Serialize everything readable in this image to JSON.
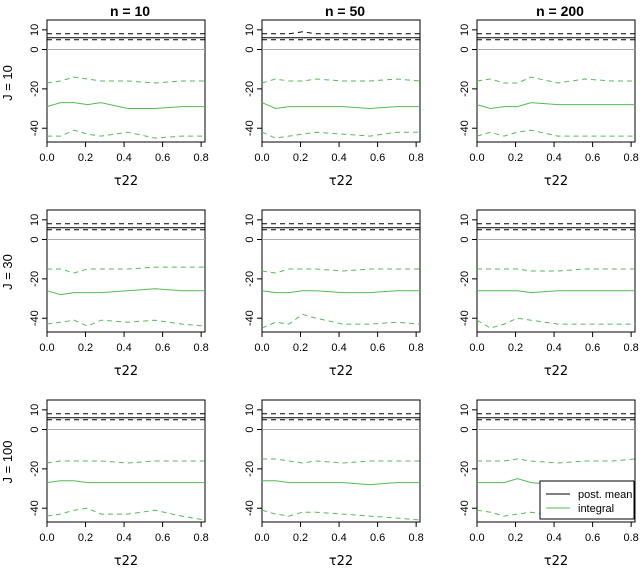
{
  "chart_data": {
    "type": "line",
    "layout": "3x3 grid",
    "column_titles": [
      "n = 10",
      "n = 50",
      "n = 200"
    ],
    "row_titles": [
      "J = 10",
      "J = 30",
      "J = 100"
    ],
    "xlabel": "τ22",
    "xlim": [
      0,
      0.82
    ],
    "ylim": [
      -47,
      15
    ],
    "x_ticks": [
      "0.0",
      "0.2",
      "0.4",
      "0.6",
      "0.8"
    ],
    "y_ticks": [
      "10",
      "0",
      "-20",
      "-40"
    ],
    "reference_line": 0,
    "legend": {
      "position": "bottom-right of bottom-right panel",
      "entries": [
        {
          "label": "post. mean",
          "color": "#000000"
        },
        {
          "label": "integral",
          "color": "#55bb55"
        }
      ]
    },
    "x": [
      0.0,
      0.07,
      0.14,
      0.21,
      0.28,
      0.42,
      0.56,
      0.7,
      0.82
    ],
    "panels": [
      {
        "row": "J = 10",
        "col": "n = 10",
        "post_mean": {
          "mid": [
            6,
            6,
            6,
            6,
            6,
            6,
            6,
            6,
            6
          ],
          "upper": [
            8,
            8,
            8,
            8,
            8,
            8,
            8,
            8,
            8
          ],
          "lower": [
            5,
            5,
            5,
            5,
            5,
            5,
            5,
            5,
            5
          ]
        },
        "integral": {
          "mid": [
            -29,
            -27,
            -27,
            -28,
            -27,
            -30,
            -30,
            -29,
            -29
          ],
          "upper": [
            -17,
            -16,
            -14,
            -15,
            -16,
            -16,
            -17,
            -16,
            -16
          ],
          "lower": [
            -44,
            -44,
            -41,
            -43,
            -44,
            -42,
            -45,
            -44,
            -44
          ]
        }
      },
      {
        "row": "J = 10",
        "col": "n = 50",
        "post_mean": {
          "mid": [
            6,
            6,
            6,
            6,
            6,
            6,
            6,
            6,
            6
          ],
          "upper": [
            8,
            8,
            8,
            9,
            8,
            8,
            8,
            8,
            8
          ],
          "lower": [
            5,
            5,
            5,
            5,
            5,
            5,
            5,
            5,
            5
          ]
        },
        "integral": {
          "mid": [
            -27,
            -30,
            -29,
            -29,
            -29,
            -29,
            -30,
            -29,
            -29
          ],
          "upper": [
            -17,
            -15,
            -16,
            -16,
            -15,
            -16,
            -16,
            -15,
            -16
          ],
          "lower": [
            -42,
            -45,
            -44,
            -43,
            -42,
            -43,
            -44,
            -42,
            -42
          ]
        }
      },
      {
        "row": "J = 10",
        "col": "n = 200",
        "post_mean": {
          "mid": [
            6,
            6,
            6,
            6,
            6,
            6,
            6,
            6,
            6
          ],
          "upper": [
            8,
            8,
            8,
            8,
            8,
            8,
            8,
            8,
            8
          ],
          "lower": [
            5,
            5,
            5,
            5,
            5,
            5,
            5,
            5,
            5
          ]
        },
        "integral": {
          "mid": [
            -28,
            -30,
            -29,
            -29,
            -27,
            -28,
            -28,
            -28,
            -28
          ],
          "upper": [
            -16,
            -15,
            -17,
            -17,
            -14,
            -17,
            -15,
            -16,
            -16
          ],
          "lower": [
            -44,
            -42,
            -44,
            -42,
            -41,
            -44,
            -44,
            -44,
            -44
          ]
        }
      },
      {
        "row": "J = 30",
        "col": "n = 10",
        "post_mean": {
          "mid": [
            6,
            6,
            6,
            6,
            6,
            6,
            6,
            6,
            6
          ],
          "upper": [
            8,
            8,
            8,
            8,
            8,
            8,
            8,
            8,
            8
          ],
          "lower": [
            5,
            5,
            5,
            5,
            5,
            5,
            5,
            5,
            5
          ]
        },
        "integral": {
          "mid": [
            -26,
            -28,
            -27,
            -27,
            -27,
            -26,
            -25,
            -26,
            -26
          ],
          "upper": [
            -15,
            -15,
            -17,
            -15,
            -15,
            -15,
            -14,
            -14,
            -14
          ],
          "lower": [
            -43,
            -42,
            -41,
            -44,
            -41,
            -42,
            -41,
            -43,
            -44
          ]
        }
      },
      {
        "row": "J = 30",
        "col": "n = 50",
        "post_mean": {
          "mid": [
            6,
            6,
            6,
            6,
            6,
            6,
            6,
            6,
            6
          ],
          "upper": [
            8,
            8,
            8,
            8,
            8,
            8,
            8,
            8,
            8
          ],
          "lower": [
            5,
            5,
            5,
            5,
            5,
            5,
            5,
            5,
            5
          ]
        },
        "integral": {
          "mid": [
            -26,
            -27,
            -27,
            -26,
            -26,
            -27,
            -27,
            -26,
            -26
          ],
          "upper": [
            -16,
            -17,
            -15,
            -15,
            -15,
            -16,
            -15,
            -15,
            -15
          ],
          "lower": [
            -45,
            -42,
            -43,
            -38,
            -40,
            -43,
            -43,
            -42,
            -43
          ]
        }
      },
      {
        "row": "J = 30",
        "col": "n = 200",
        "post_mean": {
          "mid": [
            6,
            6,
            6,
            6,
            6,
            6,
            6,
            6,
            6
          ],
          "upper": [
            8,
            8,
            8,
            8,
            8,
            8,
            8,
            8,
            8
          ],
          "lower": [
            5,
            5,
            5,
            5,
            5,
            5,
            5,
            5,
            5
          ]
        },
        "integral": {
          "mid": [
            -26,
            -26,
            -26,
            -26,
            -27,
            -26,
            -26,
            -26,
            -26
          ],
          "upper": [
            -15,
            -15,
            -15,
            -15,
            -16,
            -16,
            -15,
            -15,
            -15
          ],
          "lower": [
            -41,
            -45,
            -43,
            -40,
            -41,
            -43,
            -43,
            -43,
            -43
          ]
        }
      },
      {
        "row": "J = 100",
        "col": "n = 10",
        "post_mean": {
          "mid": [
            6,
            6,
            6,
            6,
            6,
            6,
            6,
            6,
            6
          ],
          "upper": [
            8,
            8,
            8,
            8,
            8,
            8,
            8,
            8,
            8
          ],
          "lower": [
            5,
            5,
            5,
            5,
            5,
            5,
            5,
            5,
            5
          ]
        },
        "integral": {
          "mid": [
            -27,
            -26,
            -26,
            -27,
            -27,
            -27,
            -27,
            -27,
            -27
          ],
          "upper": [
            -17,
            -16,
            -16,
            -16,
            -16,
            -17,
            -16,
            -16,
            -16
          ],
          "lower": [
            -44,
            -43,
            -41,
            -40,
            -43,
            -43,
            -41,
            -44,
            -46
          ]
        }
      },
      {
        "row": "J = 100",
        "col": "n = 50",
        "post_mean": {
          "mid": [
            6,
            6,
            6,
            6,
            6,
            6,
            6,
            6,
            6
          ],
          "upper": [
            8,
            8,
            8,
            8,
            8,
            8,
            8,
            8,
            8
          ],
          "lower": [
            5,
            5,
            5,
            5,
            5,
            5,
            5,
            5,
            5
          ]
        },
        "integral": {
          "mid": [
            -26,
            -26,
            -27,
            -27,
            -27,
            -27,
            -28,
            -27,
            -27
          ],
          "upper": [
            -15,
            -15,
            -16,
            -17,
            -16,
            -17,
            -16,
            -16,
            -16
          ],
          "lower": [
            -41,
            -43,
            -44,
            -42,
            -42,
            -43,
            -44,
            -45,
            -46
          ]
        }
      },
      {
        "row": "J = 100",
        "col": "n = 200",
        "post_mean": {
          "mid": [
            6,
            6,
            6,
            6,
            6,
            6,
            6,
            6,
            6
          ],
          "upper": [
            8,
            8,
            8,
            8,
            8,
            8,
            8,
            8,
            8
          ],
          "lower": [
            5,
            5,
            5,
            5,
            5,
            5,
            5,
            5,
            5
          ]
        },
        "integral": {
          "mid": [
            -27,
            -27,
            -27,
            -25,
            -27,
            -28,
            -27,
            -27,
            -26
          ],
          "upper": [
            -16,
            -16,
            -16,
            -15,
            -16,
            -17,
            -16,
            -16,
            -15
          ],
          "lower": [
            -41,
            -42,
            -44,
            -43,
            -42,
            -44,
            -43,
            -44,
            -43
          ]
        }
      }
    ]
  }
}
